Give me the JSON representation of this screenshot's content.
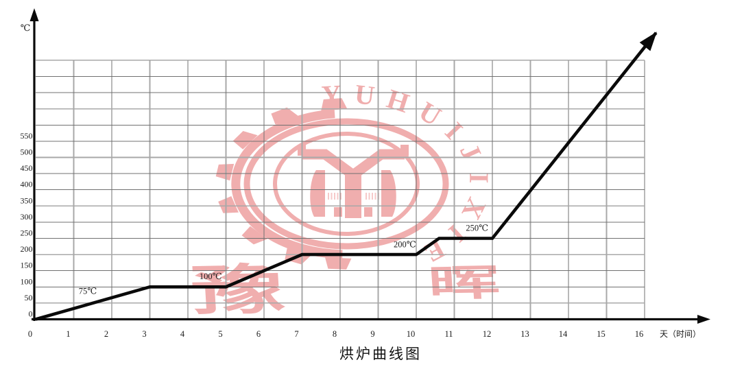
{
  "title": {
    "text": "烘炉曲线图"
  },
  "watermark": {
    "arc_text": "YUHUIJIXIE",
    "char_left": "豫",
    "char_right": "晖"
  },
  "colors": {
    "background": "#ffffff",
    "curve": "#0a0a0a",
    "axis": "#0a0a0a",
    "text": "#1a1a1a",
    "grid_dark": "#707070",
    "grid_light": "#a8a8a8",
    "watermark": "#f0aeae",
    "watermark_light": "#f6c9c9"
  },
  "chart_data": {
    "type": "line",
    "title": "烘炉曲线图",
    "xlabel": "天（时间）",
    "ylabel": "℃",
    "x_ticks": [
      0,
      1,
      2,
      3,
      4,
      5,
      6,
      7,
      8,
      9,
      10,
      11,
      12,
      13,
      14,
      15,
      16
    ],
    "y_ticks": [
      0,
      50,
      100,
      150,
      200,
      250,
      300,
      350,
      400,
      450,
      500,
      550
    ],
    "x_range": [
      0,
      16.5
    ],
    "y_range": [
      0,
      800
    ],
    "grid": true,
    "end_arrow": true,
    "points": [
      [
        0,
        0
      ],
      [
        3,
        100
      ],
      [
        5,
        100
      ],
      [
        7,
        200
      ],
      [
        10,
        200
      ],
      [
        10.6,
        250
      ],
      [
        12,
        250
      ],
      [
        16.3,
        885
      ]
    ],
    "annotations": [
      {
        "label": "75℃",
        "day": 1.37,
        "temp": 88
      },
      {
        "label": "100℃",
        "day": 4.6,
        "temp": 134
      },
      {
        "label": "200℃",
        "day": 9.7,
        "temp": 232
      },
      {
        "label": "250℃",
        "day": 11.6,
        "temp": 283
      }
    ]
  }
}
